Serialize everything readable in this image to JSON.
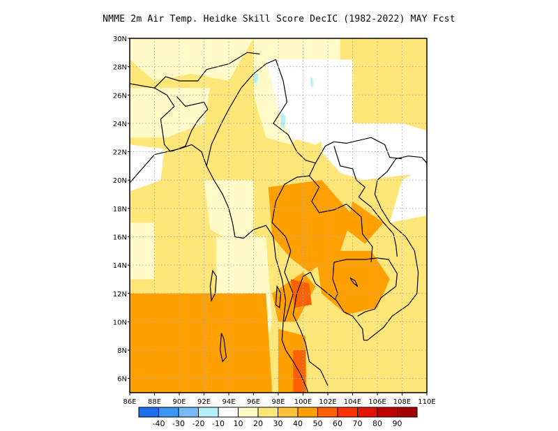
{
  "title": "NMME  2m Air Temp. Heidke Skill Score DecIC (1982-2022) MAY Fcst",
  "map": {
    "lon_range": [
      86,
      110
    ],
    "lat_range": [
      5,
      30
    ],
    "lon_ticks": [
      86,
      88,
      90,
      92,
      94,
      96,
      98,
      100,
      102,
      104,
      106,
      108,
      110
    ],
    "lat_ticks": [
      6,
      8,
      10,
      12,
      14,
      16,
      18,
      20,
      22,
      24,
      26,
      28,
      30
    ],
    "lon_tick_labels": [
      "86E",
      "88E",
      "90E",
      "92E",
      "94E",
      "96E",
      "98E",
      "100E",
      "102E",
      "104E",
      "106E",
      "108E",
      "110E"
    ],
    "lat_tick_labels": [
      "6N",
      "8N",
      "10N",
      "12N",
      "14N",
      "16N",
      "18N",
      "20N",
      "22N",
      "24N",
      "26N",
      "28N",
      "30N"
    ],
    "grid": true
  },
  "colorbar": {
    "levels": [
      -50,
      -40,
      -30,
      -20,
      -10,
      10,
      20,
      30,
      40,
      50,
      60,
      70,
      80,
      90,
      100
    ],
    "labels": [
      "-40",
      "-30",
      "-20",
      "-10",
      "10",
      "20",
      "30",
      "40",
      "50",
      "60",
      "70",
      "80",
      "90"
    ],
    "colors": [
      "#1e6eeb",
      "#3c96f5",
      "#78b9fa",
      "#b4f0fa",
      "#ffffff",
      "#fffac8",
      "#ffe678",
      "#ffc03c",
      "#ffa000",
      "#ff6000",
      "#ff3200",
      "#e11400",
      "#c00000",
      "#a50000"
    ]
  },
  "regions": [
    {
      "name": "white-west-bengal",
      "color": "#ffffff"
    },
    {
      "name": "white-china-north",
      "color": "#ffffff"
    },
    {
      "name": "white-laos-north",
      "color": "#ffffff"
    },
    {
      "name": "white-vietnam-east",
      "color": "#ffffff"
    },
    {
      "name": "light-myanmar-west",
      "color": "#fffac8"
    },
    {
      "name": "light-andaman-strip",
      "color": "#fffac8"
    },
    {
      "name": "light-yunnan",
      "color": "#fffac8"
    },
    {
      "name": "orange-thailand",
      "color": "#ffa000"
    },
    {
      "name": "orange-cambodia",
      "color": "#ffa000"
    },
    {
      "name": "red-gulf-spot",
      "color": "#ff6000"
    },
    {
      "name": "red-peninsula-spot",
      "color": "#ff6000"
    },
    {
      "name": "blue-yunnan-spot",
      "color": "#b4f0fa"
    },
    {
      "name": "blue-tibet-spot",
      "color": "#b4f0fa"
    }
  ]
}
